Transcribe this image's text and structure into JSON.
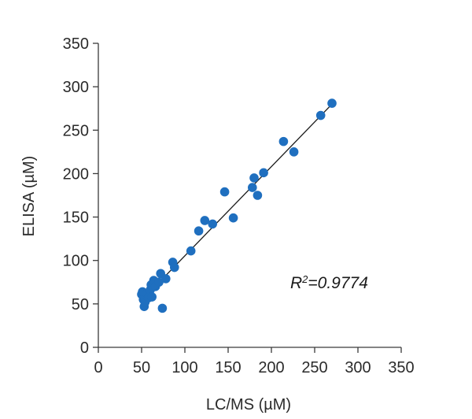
{
  "chart_data": {
    "type": "scatter",
    "xlabel": "LC/MS (µM)",
    "ylabel": "ELISA (µM)",
    "xlim": [
      0,
      350
    ],
    "ylim": [
      0,
      350
    ],
    "xticks": [
      "0",
      "50",
      "100",
      "150",
      "200",
      "250",
      "300",
      "350"
    ],
    "yticks": [
      "0",
      "50",
      "100",
      "150",
      "200",
      "250",
      "300",
      "350"
    ],
    "grid": false,
    "legend": "none",
    "point_color": "#1f6fbf",
    "line_color": "#1a1a1a",
    "annotation": {
      "r_letter": "R",
      "r_exponent": "2",
      "r_value": "=0.9774"
    },
    "trendline": {
      "x": [
        50,
        270
      ],
      "y": [
        54,
        280
      ]
    },
    "points": [
      {
        "x": 50,
        "y": 61
      },
      {
        "x": 51,
        "y": 64
      },
      {
        "x": 52,
        "y": 55
      },
      {
        "x": 53,
        "y": 47
      },
      {
        "x": 54,
        "y": 52
      },
      {
        "x": 56,
        "y": 62
      },
      {
        "x": 58,
        "y": 57
      },
      {
        "x": 60,
        "y": 66
      },
      {
        "x": 61,
        "y": 72
      },
      {
        "x": 62,
        "y": 58
      },
      {
        "x": 64,
        "y": 77
      },
      {
        "x": 66,
        "y": 70
      },
      {
        "x": 70,
        "y": 75
      },
      {
        "x": 72,
        "y": 85
      },
      {
        "x": 74,
        "y": 45
      },
      {
        "x": 78,
        "y": 79
      },
      {
        "x": 86,
        "y": 98
      },
      {
        "x": 88,
        "y": 92
      },
      {
        "x": 107,
        "y": 111
      },
      {
        "x": 116,
        "y": 134
      },
      {
        "x": 123,
        "y": 146
      },
      {
        "x": 132,
        "y": 142
      },
      {
        "x": 146,
        "y": 179
      },
      {
        "x": 156,
        "y": 149
      },
      {
        "x": 178,
        "y": 184
      },
      {
        "x": 180,
        "y": 195
      },
      {
        "x": 184,
        "y": 175
      },
      {
        "x": 191,
        "y": 201
      },
      {
        "x": 214,
        "y": 237
      },
      {
        "x": 226,
        "y": 225
      },
      {
        "x": 257,
        "y": 267
      },
      {
        "x": 270,
        "y": 281
      }
    ]
  }
}
